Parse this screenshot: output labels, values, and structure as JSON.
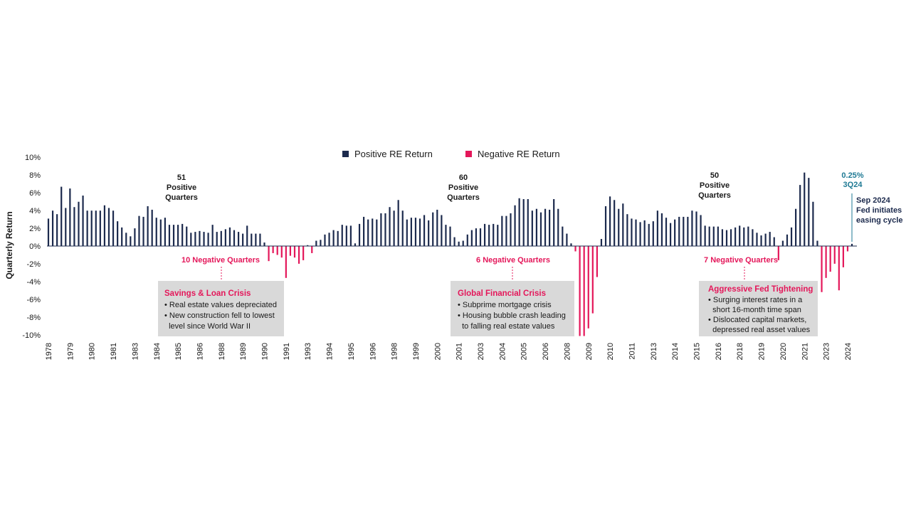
{
  "colors": {
    "positive": "#1c2a4d",
    "negative": "#e4175a",
    "accent": "#1f7a94",
    "box": "#d9d9d9"
  },
  "chart_data": {
    "type": "bar",
    "ylabel": "Quarterly Return",
    "ylim": [
      -10,
      10
    ],
    "yticks": [
      "10%",
      "8%",
      "6%",
      "4%",
      "2%",
      "0%",
      "-2%",
      "-4%",
      "-6%",
      "-8%",
      "-10%"
    ],
    "x_tick_labels": [
      "1978",
      "1979",
      "1980",
      "1981",
      "1983",
      "1984",
      "1985",
      "1986",
      "1988",
      "1989",
      "1990",
      "1991",
      "1993",
      "1994",
      "1995",
      "1996",
      "1998",
      "1999",
      "2000",
      "2001",
      "2003",
      "2004",
      "2005",
      "2006",
      "2008",
      "2009",
      "2010",
      "2011",
      "2013",
      "2014",
      "2015",
      "2016",
      "2018",
      "2019",
      "2020",
      "2021",
      "2023",
      "2024"
    ],
    "x_tick_quarters": [
      0,
      5,
      10,
      15,
      20,
      25,
      30,
      35,
      40,
      45,
      50,
      55,
      60,
      65,
      70,
      75,
      80,
      85,
      90,
      95,
      100,
      105,
      110,
      115,
      120,
      125,
      130,
      135,
      140,
      145,
      150,
      155,
      160,
      165,
      170,
      175,
      180,
      185
    ],
    "grid": false,
    "legend_position": "top-center",
    "series": [
      {
        "name": "Positive RE Return",
        "color": "#1c2a4d"
      },
      {
        "name": "Negative RE Return",
        "color": "#e4175a"
      }
    ],
    "values": [
      3.1,
      4.0,
      3.6,
      6.7,
      4.3,
      6.5,
      4.4,
      5.0,
      5.7,
      4.0,
      4.0,
      4.0,
      4.0,
      4.6,
      4.3,
      4.0,
      2.8,
      2.1,
      1.5,
      1.1,
      2.0,
      3.4,
      3.3,
      4.5,
      4.1,
      3.2,
      3.0,
      3.2,
      2.4,
      2.4,
      2.4,
      2.5,
      2.2,
      1.5,
      1.6,
      1.7,
      1.6,
      1.5,
      2.4,
      1.6,
      1.7,
      1.9,
      2.1,
      1.8,
      1.6,
      1.4,
      2.3,
      1.4,
      1.4,
      1.4,
      0.4,
      -1.7,
      -0.8,
      -1.0,
      -1.3,
      -3.6,
      -1.1,
      -1.3,
      -2.0,
      -1.6,
      0.1,
      -0.8,
      0.6,
      0.7,
      1.3,
      1.5,
      1.8,
      1.7,
      2.4,
      2.3,
      2.3,
      0.3,
      2.5,
      3.3,
      3.0,
      3.1,
      3.0,
      3.7,
      3.7,
      4.4,
      4.0,
      5.2,
      4.0,
      3.0,
      3.2,
      3.2,
      3.1,
      3.5,
      2.9,
      3.8,
      4.1,
      3.5,
      2.4,
      2.2,
      1.0,
      0.5,
      0.6,
      1.3,
      1.8,
      2.0,
      2.0,
      2.5,
      2.4,
      2.5,
      2.4,
      3.4,
      3.4,
      3.7,
      4.6,
      5.4,
      5.3,
      5.3,
      4.0,
      4.2,
      3.8,
      4.2,
      4.1,
      5.3,
      4.2,
      2.2,
      1.4,
      0.3,
      -0.6,
      -10.3,
      -10.3,
      -9.3,
      -7.6,
      -3.5,
      0.8,
      4.5,
      5.6,
      5.2,
      4.2,
      4.8,
      3.6,
      3.1,
      3.0,
      2.7,
      2.9,
      2.5,
      2.8,
      4.0,
      3.7,
      3.2,
      2.6,
      3.0,
      3.3,
      3.3,
      3.3,
      4.0,
      3.9,
      3.5,
      2.3,
      2.2,
      2.2,
      2.2,
      1.9,
      1.8,
      1.9,
      2.1,
      2.3,
      2.1,
      2.2,
      1.9,
      1.5,
      1.2,
      1.4,
      1.6,
      1.0,
      -1.6,
      0.6,
      1.3,
      2.1,
      4.2,
      6.9,
      8.3,
      7.7,
      5.0,
      0.6,
      -5.2,
      -3.6,
      -2.9,
      -2.0,
      -5.0,
      -2.4,
      -0.6,
      0.25
    ],
    "annotations": {
      "positive_1": {
        "count": "51",
        "line1": "Positive",
        "line2": "Quarters"
      },
      "positive_2": {
        "count": "60",
        "line1": "Positive",
        "line2": "Quarters"
      },
      "positive_3": {
        "count": "50",
        "line1": "Positive",
        "line2": "Quarters"
      },
      "negative_1": "10 Negative Quarters",
      "negative_2": "6 Negative Quarters",
      "negative_3": "7 Negative Quarters",
      "latest_value": "0.25%",
      "latest_quarter": "3Q24",
      "event_1": "Sep 2024",
      "event_2": "Fed initiates",
      "event_3": "easing cycle"
    },
    "boxes": [
      {
        "title": "Savings & Loan Crisis",
        "lines": [
          "• Real estate values depreciated",
          "• New construction fell to lowest",
          "  level since World War II"
        ]
      },
      {
        "title": "Global Financial Crisis",
        "lines": [
          "• Subprime mortgage crisis",
          "• Housing bubble crash leading",
          "  to falling real estate values"
        ]
      },
      {
        "title": "Aggressive Fed Tightening",
        "lines": [
          "• Surging interest rates in a",
          "  short 16-month time span",
          "• Dislocated capital markets,",
          "  depressed real asset values"
        ]
      }
    ]
  }
}
